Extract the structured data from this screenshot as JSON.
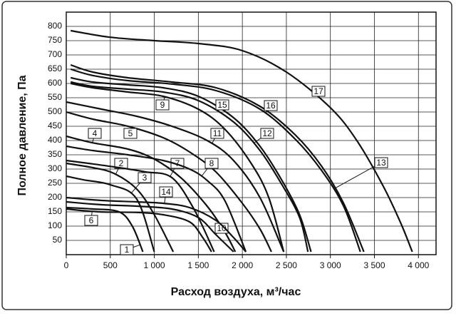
{
  "chart_data": {
    "type": "line",
    "y_label": "Полное давление, Па",
    "x_label": "Расход воздуха, м³/час",
    "xlim": [
      0,
      4200
    ],
    "ylim": [
      0,
      850
    ],
    "xticks": [
      0,
      500,
      {
        "value": 1000,
        "label": "1 000"
      },
      {
        "value": 1500,
        "label": "1 500"
      },
      {
        "value": 2000,
        "label": "2 000"
      },
      {
        "value": 2500,
        "label": "2 500"
      },
      {
        "value": 3000,
        "label": "3 000"
      },
      {
        "value": 3500,
        "label": "3 500"
      },
      {
        "value": 4000,
        "label": "4 000"
      }
    ],
    "yticks": [
      50,
      100,
      150,
      200,
      250,
      300,
      350,
      400,
      450,
      500,
      550,
      600,
      650,
      700,
      750,
      800
    ],
    "grid": true,
    "color": "#111111",
    "series": [
      {
        "name": "1",
        "x": [
          0,
          300,
          600,
          750,
          870
        ],
        "values": [
          165,
          160,
          150,
          100,
          10
        ]
      },
      {
        "name": "2",
        "x": [
          0,
          300,
          540,
          800,
          1000,
          1215
        ],
        "values": [
          320,
          305,
          285,
          230,
          140,
          10
        ]
      },
      {
        "name": "3",
        "x": [
          0,
          200,
          500,
          800,
          1000
        ],
        "values": [
          275,
          262,
          245,
          195,
          10
        ]
      },
      {
        "name": "4",
        "x": [
          0,
          300,
          700,
          1000,
          1300,
          1600,
          1800,
          1920
        ],
        "values": [
          415,
          392,
          370,
          335,
          270,
          170,
          80,
          10
        ]
      },
      {
        "name": "5",
        "x": [
          0,
          300,
          700,
          1100,
          1400,
          1700,
          2000,
          2200,
          2330
        ],
        "values": [
          500,
          475,
          450,
          410,
          360,
          290,
          180,
          90,
          10
        ]
      },
      {
        "name": "6",
        "x": [
          0,
          380,
          800,
          1100,
          1400,
          1550,
          1650
        ],
        "values": [
          160,
          150,
          148,
          140,
          115,
          60,
          10
        ]
      },
      {
        "name": "7",
        "x": [
          0,
          300,
          600,
          900,
          1200,
          1450,
          1680
        ],
        "values": [
          330,
          318,
          305,
          290,
          270,
          160,
          10
        ]
      },
      {
        "name": "8",
        "x": [
          0,
          300,
          700,
          1100,
          1400,
          1600,
          1800,
          2040
        ],
        "values": [
          380,
          365,
          350,
          330,
          300,
          260,
          190,
          10
        ]
      },
      {
        "name": "9",
        "x": [
          50,
          300,
          700,
          1100,
          1500,
          1800,
          2100,
          2300,
          2470
        ],
        "values": [
          600,
          585,
          570,
          555,
          510,
          440,
          320,
          200,
          10
        ]
      },
      {
        "name": "10",
        "x": [
          0,
          400,
          800,
          1200,
          1500,
          1700,
          1900
        ],
        "values": [
          185,
          175,
          170,
          160,
          130,
          70,
          10
        ]
      },
      {
        "name": "11",
        "x": [
          0,
          400,
          800,
          1200,
          1600,
          1900,
          2200,
          2470
        ],
        "values": [
          535,
          510,
          485,
          450,
          400,
          330,
          200,
          10
        ]
      },
      {
        "name": "12",
        "x": [
          50,
          300,
          700,
          1100,
          1500,
          1900,
          2200,
          2450,
          2650,
          2745
        ],
        "values": [
          605,
          590,
          580,
          570,
          540,
          465,
          365,
          245,
          130,
          10
        ]
      },
      {
        "name": "13",
        "x": [
          50,
          300,
          700,
          1200,
          1700,
          2200,
          2600,
          2900,
          3150,
          3380
        ],
        "values": [
          665,
          640,
          620,
          605,
          585,
          520,
          420,
          310,
          180,
          10
        ]
      },
      {
        "name": "14",
        "x": [
          0,
          400,
          800,
          1100,
          1400,
          1700,
          1900,
          2040
        ],
        "values": [
          200,
          190,
          185,
          180,
          165,
          120,
          60,
          10
        ]
      },
      {
        "name": "15",
        "x": [
          50,
          300,
          700,
          1100,
          1500,
          1900,
          2200,
          2450,
          2650,
          2780
        ],
        "values": [
          620,
          605,
          595,
          585,
          555,
          480,
          380,
          260,
          140,
          10
        ]
      },
      {
        "name": "16",
        "x": [
          50,
          300,
          700,
          1200,
          1700,
          2200,
          2600,
          2900,
          3150,
          3340
        ],
        "values": [
          650,
          628,
          610,
          598,
          575,
          510,
          405,
          295,
          170,
          10
        ]
      },
      {
        "name": "17",
        "x": [
          50,
          500,
          1000,
          1500,
          2000,
          2500,
          3000,
          3300,
          3600,
          3800,
          3930
        ],
        "values": [
          785,
          762,
          750,
          740,
          715,
          640,
          515,
          400,
          240,
          110,
          10
        ]
      }
    ]
  }
}
